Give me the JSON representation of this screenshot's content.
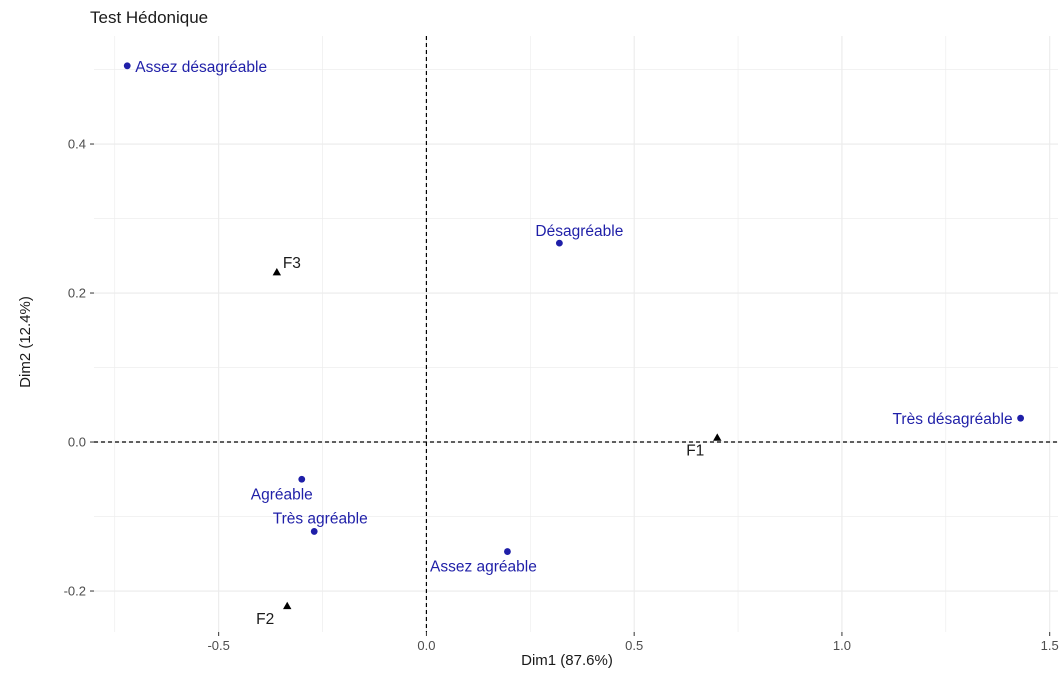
{
  "chart_data": {
    "type": "scatter",
    "title": "Test Hédonique",
    "xlabel": "Dim1 (87.6%)",
    "ylabel": "Dim2 (12.4%)",
    "xlim": [
      -0.8,
      1.52
    ],
    "ylim": [
      -0.255,
      0.545
    ],
    "x_ticks": [
      -0.5,
      0.0,
      0.5,
      1.0,
      1.5
    ],
    "x_tick_labels": [
      "-0.5",
      "0.0",
      "0.5",
      "1.0",
      "1.5"
    ],
    "y_ticks": [
      -0.2,
      0.0,
      0.2,
      0.4
    ],
    "y_tick_labels": [
      "-0.2",
      "0.0",
      "0.2",
      "0.4"
    ],
    "grid": true,
    "reference_lines": {
      "x": 0,
      "y": 0,
      "style": "dashed"
    },
    "colors": {
      "rows": "#1f1fa8",
      "columns": "#000000",
      "grid": "#ebebeb"
    },
    "series": [
      {
        "marker": "circle",
        "color": "#1f1fa8",
        "points": [
          {
            "label": "Assez désagréable",
            "x": -0.72,
            "y": 0.505
          },
          {
            "label": "Désagréable",
            "x": 0.32,
            "y": 0.267
          },
          {
            "label": "Très désagréable",
            "x": 1.43,
            "y": 0.032
          },
          {
            "label": "Agréable",
            "x": -0.3,
            "y": -0.05
          },
          {
            "label": "Très agréable",
            "x": -0.27,
            "y": -0.12
          },
          {
            "label": "Assez agréable",
            "x": 0.195,
            "y": -0.147
          }
        ]
      },
      {
        "marker": "triangle",
        "color": "#000000",
        "points": [
          {
            "label": "F3",
            "x": -0.36,
            "y": 0.228
          },
          {
            "label": "F1",
            "x": 0.7,
            "y": 0.006
          },
          {
            "label": "F2",
            "x": -0.335,
            "y": -0.22
          }
        ]
      }
    ]
  }
}
